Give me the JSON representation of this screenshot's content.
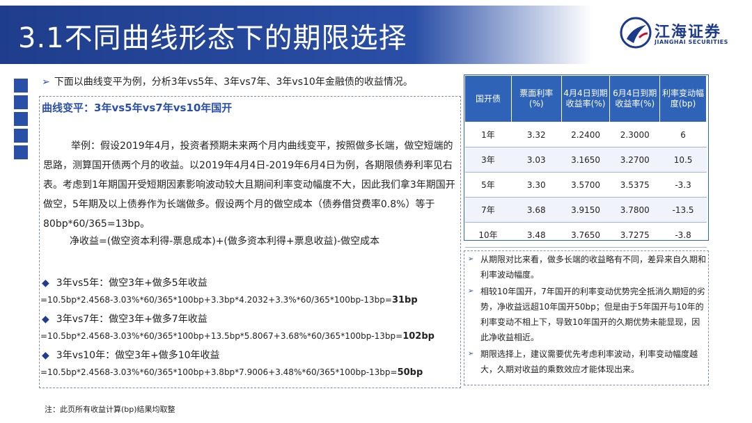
{
  "slide": {
    "title": "3.1不同曲线形态下的期限选择",
    "logo": {
      "cn": "江海证券",
      "en": "JIANGHAI SECURITIES",
      "icon": "jianghai-logo-icon"
    },
    "intro": "下面以曲线变平为例，分析3年vs5年、3年vs7年、3年vs10年金融债的收益情况。",
    "heading": "曲线变平：3年vs5年vs7年vs10年国开",
    "paragraph": "举例：假设2019年4月，投资者预期未来两个月内曲线变平，按照做多长端，做空短端的思路，测算国开债两个月的收益。以2019年4月4日-2019年6月4日为例，各期限债券利率见右表。考虑到1年期国开受短期因素影响波动较大且期间利率变动幅度不大，因此我们拿3年期国开做空，5年期及以上债券作为长端做多。假设两个月的做空成本（债券借贷费率0.8%）等于80bp*60/365=13bp。",
    "profit_formula": "净收益=(做空资本利得-票息成本)+(做多资本利得+票息收益)-做空成本",
    "cases": [
      {
        "title": "3年vs5年：做空3年+做多5年收益",
        "formula": "=10.5bp*2.4568-3.03%*60/365*100bp+3.3bp*4.2032+3.3%*60/365*100bp-13bp=",
        "result": "31bp"
      },
      {
        "title": "3年vs7年：做空3年+做多7年收益",
        "formula": "=10.5bp*2.4568-3.03%*60/365*100bp+13.5bp*5.8067+3.68%*60/365*100bp-13bp=",
        "result": "102bp"
      },
      {
        "title": "3年vs10年：做空3年+做多10年收益",
        "formula": "=10.5bp*2.4568-3.03%*60/365*100bp+3.8bp*7.9006+3.48%*60/365*100bp-13bp=",
        "result": "50bp"
      }
    ],
    "table": {
      "headers": [
        "国开债",
        "票面利率(%)",
        "4月4日到期收益率(%)",
        "6月4日到期收益率(%)",
        "利率变动幅度(bp)"
      ],
      "rows": [
        [
          "1年",
          "3.32",
          "2.2400",
          "2.3000",
          "6"
        ],
        [
          "3年",
          "3.03",
          "3.1650",
          "3.2700",
          "10.5"
        ],
        [
          "5年",
          "3.30",
          "3.5700",
          "3.5375",
          "-3.3"
        ],
        [
          "7年",
          "3.68",
          "3.9150",
          "3.7800",
          "-13.5"
        ],
        [
          "10年",
          "3.48",
          "3.7650",
          "3.7275",
          "-3.8"
        ]
      ]
    },
    "bullets": [
      "从期限对比来看，做多长端的收益略有不同，差异来自久期和利率波动幅度。",
      "相较10年国开，7年国开的利率变动优势完全抵消久期短的劣势，净收益远超10年国开50bp；但是由于5年国开与10年的利率变动不相上下，导致10年国开的久期优势未能显现，因此净收益相近。",
      "期限选择上，建议需要优先考虑利率波动，利率变动幅度越大，久期对收益的乘数效应才能体现出来。"
    ],
    "footnote": "注：此页所有收益计算(bp)结果均取整",
    "colors": {
      "primary": "#2a4fa6",
      "table_header": "#2e63b8"
    }
  }
}
